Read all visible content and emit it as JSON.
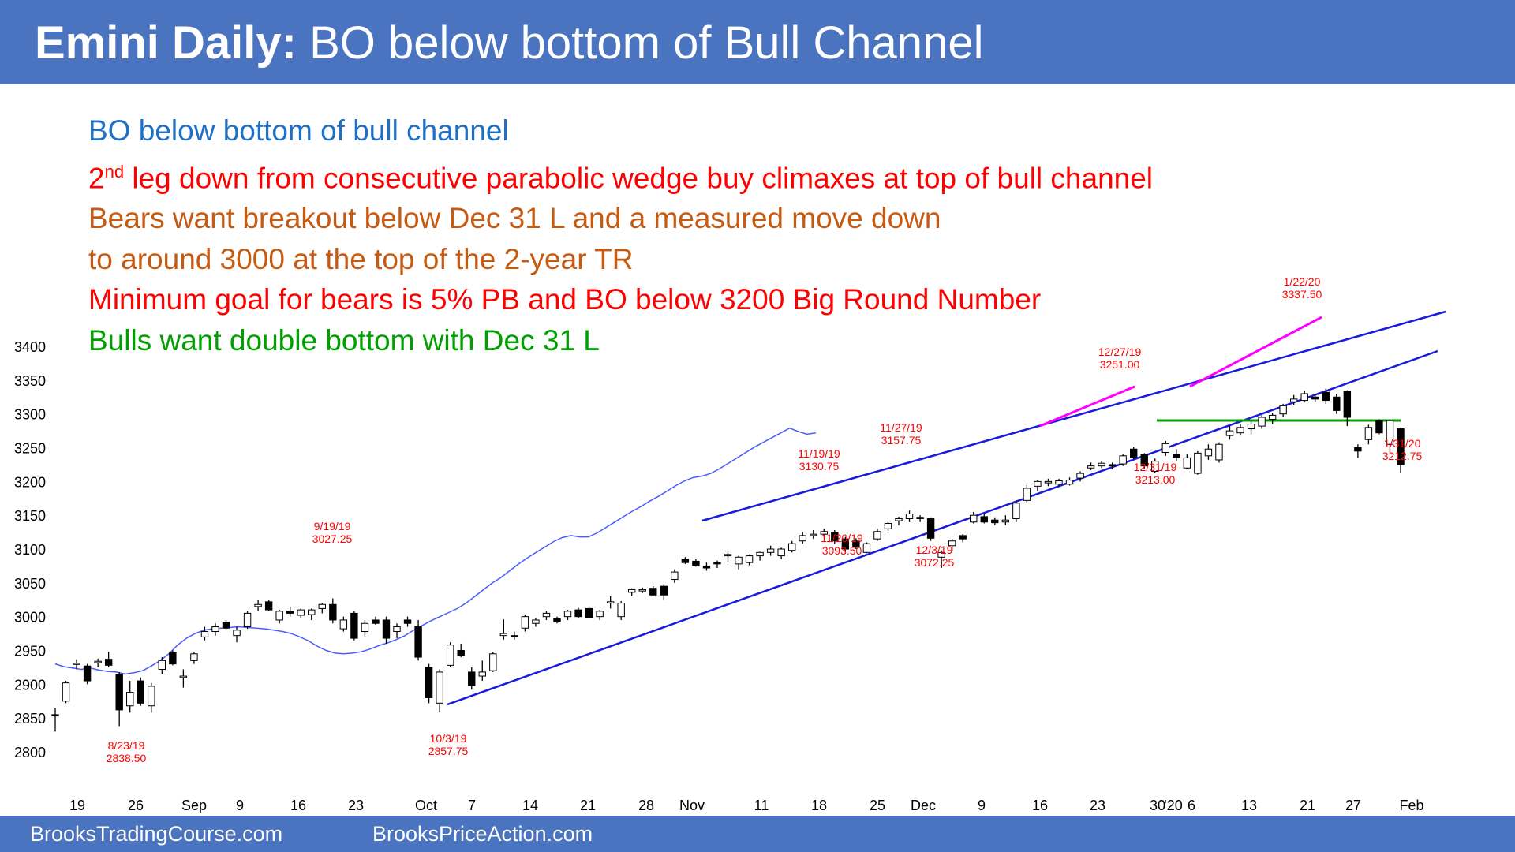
{
  "header": {
    "title_bold": "Emini Daily:",
    "title_rest": " BO below bottom of Bull Channel",
    "bg_color": "#4a73c0"
  },
  "notes": [
    {
      "text": "BO below bottom of bull channel",
      "color": "#1f6fc5"
    },
    {
      "prefix": "2",
      "sup": "nd",
      "text": " leg down from consecutive parabolic wedge buy climaxes at top of bull channel",
      "color": "#ff0000"
    },
    {
      "text": "Bears want breakout below Dec 31 L and a measured move down",
      "color": "#c65a11"
    },
    {
      "text": "to around 3000 at the top of the 2-year TR",
      "color": "#c65a11"
    },
    {
      "text": "Minimum goal for bears is 5% PB and BO below 3200 Big Round Number",
      "color": "#ff0000"
    },
    {
      "text": "Bulls want double bottom with Dec 31 L",
      "color": "#00a000"
    }
  ],
  "footer": {
    "left": "BrooksTradingCourse.com",
    "right": "BrooksPriceAction.com"
  },
  "chart_data": {
    "type": "candlestick",
    "y_ticks": [
      2800,
      2850,
      2900,
      2950,
      3000,
      3050,
      3100,
      3150,
      3200,
      3250,
      3300,
      3350,
      3400
    ],
    "ylim": [
      2800,
      3400
    ],
    "x_ticks": [
      "19",
      "26",
      "Sep",
      "9",
      "16",
      "23",
      "Oct",
      "7",
      "14",
      "21",
      "28",
      "Nov",
      "11",
      "18",
      "25",
      "Dec",
      "9",
      "16",
      "23",
      "30",
      "'20",
      "6",
      "13",
      "21",
      "27",
      "Feb"
    ],
    "candles": [
      {
        "o": 2855,
        "h": 2865,
        "l": 2830,
        "c": 2853
      },
      {
        "o": 2875,
        "h": 2905,
        "l": 2872,
        "c": 2902
      },
      {
        "o": 2930,
        "h": 2937,
        "l": 2922,
        "c": 2931
      },
      {
        "o": 2927,
        "h": 2930,
        "l": 2900,
        "c": 2905
      },
      {
        "o": 2932,
        "h": 2938,
        "l": 2925,
        "c": 2934
      },
      {
        "o": 2937,
        "h": 2948,
        "l": 2925,
        "c": 2928
      },
      {
        "o": 2915,
        "h": 2918,
        "l": 2838,
        "c": 2862
      },
      {
        "o": 2868,
        "h": 2905,
        "l": 2858,
        "c": 2888
      },
      {
        "o": 2905,
        "h": 2910,
        "l": 2868,
        "c": 2872
      },
      {
        "o": 2868,
        "h": 2902,
        "l": 2858,
        "c": 2897
      },
      {
        "o": 2922,
        "h": 2940,
        "l": 2915,
        "c": 2935
      },
      {
        "o": 2947,
        "h": 2950,
        "l": 2928,
        "c": 2930
      },
      {
        "o": 2910,
        "h": 2922,
        "l": 2895,
        "c": 2912
      },
      {
        "o": 2935,
        "h": 2948,
        "l": 2930,
        "c": 2945
      },
      {
        "o": 2970,
        "h": 2985,
        "l": 2965,
        "c": 2978
      },
      {
        "o": 2978,
        "h": 2990,
        "l": 2972,
        "c": 2985
      },
      {
        "o": 2992,
        "h": 2995,
        "l": 2980,
        "c": 2983
      },
      {
        "o": 2972,
        "h": 2985,
        "l": 2962,
        "c": 2980
      },
      {
        "o": 2985,
        "h": 3008,
        "l": 2982,
        "c": 3005
      },
      {
        "o": 3015,
        "h": 3025,
        "l": 3008,
        "c": 3018
      },
      {
        "o": 3022,
        "h": 3025,
        "l": 3008,
        "c": 3010
      },
      {
        "o": 2995,
        "h": 3010,
        "l": 2990,
        "c": 3008
      },
      {
        "o": 3008,
        "h": 3015,
        "l": 3000,
        "c": 3005
      },
      {
        "o": 3002,
        "h": 3012,
        "l": 2998,
        "c": 3010
      },
      {
        "o": 3003,
        "h": 3012,
        "l": 2995,
        "c": 3010
      },
      {
        "o": 3012,
        "h": 3020,
        "l": 3005,
        "c": 3018
      },
      {
        "o": 3018,
        "h": 3027,
        "l": 2990,
        "c": 2995
      },
      {
        "o": 2982,
        "h": 3000,
        "l": 2978,
        "c": 2995
      },
      {
        "o": 3005,
        "h": 3008,
        "l": 2965,
        "c": 2968
      },
      {
        "o": 2978,
        "h": 2995,
        "l": 2970,
        "c": 2990
      },
      {
        "o": 2995,
        "h": 3000,
        "l": 2988,
        "c": 2990
      },
      {
        "o": 2995,
        "h": 3000,
        "l": 2960,
        "c": 2968
      },
      {
        "o": 2978,
        "h": 2990,
        "l": 2968,
        "c": 2985
      },
      {
        "o": 2995,
        "h": 3000,
        "l": 2985,
        "c": 2990
      },
      {
        "o": 2985,
        "h": 2995,
        "l": 2935,
        "c": 2940
      },
      {
        "o": 2925,
        "h": 2930,
        "l": 2872,
        "c": 2880
      },
      {
        "o": 2872,
        "h": 2922,
        "l": 2858,
        "c": 2918
      },
      {
        "o": 2928,
        "h": 2962,
        "l": 2925,
        "c": 2958
      },
      {
        "o": 2950,
        "h": 2960,
        "l": 2940,
        "c": 2943
      },
      {
        "o": 2918,
        "h": 2925,
        "l": 2892,
        "c": 2898
      },
      {
        "o": 2912,
        "h": 2935,
        "l": 2905,
        "c": 2918
      },
      {
        "o": 2920,
        "h": 2948,
        "l": 2918,
        "c": 2945
      },
      {
        "o": 2972,
        "h": 2996,
        "l": 2966,
        "c": 2975
      },
      {
        "o": 2972,
        "h": 2978,
        "l": 2966,
        "c": 2970
      },
      {
        "o": 2983,
        "h": 3003,
        "l": 2978,
        "c": 3000
      },
      {
        "o": 2990,
        "h": 2998,
        "l": 2985,
        "c": 2995
      },
      {
        "o": 3000,
        "h": 3008,
        "l": 2995,
        "c": 3005
      },
      {
        "o": 2997,
        "h": 3000,
        "l": 2990,
        "c": 2992
      },
      {
        "o": 3000,
        "h": 3010,
        "l": 2995,
        "c": 3008
      },
      {
        "o": 3010,
        "h": 3013,
        "l": 2998,
        "c": 3000
      },
      {
        "o": 3012,
        "h": 3015,
        "l": 2998,
        "c": 2998
      },
      {
        "o": 3000,
        "h": 3010,
        "l": 2995,
        "c": 3008
      },
      {
        "o": 3020,
        "h": 3030,
        "l": 3012,
        "c": 3022
      },
      {
        "o": 3000,
        "h": 3023,
        "l": 2995,
        "c": 3020
      },
      {
        "o": 3036,
        "h": 3042,
        "l": 3030,
        "c": 3040
      },
      {
        "o": 3038,
        "h": 3043,
        "l": 3035,
        "c": 3040
      },
      {
        "o": 3042,
        "h": 3045,
        "l": 3030,
        "c": 3032
      },
      {
        "o": 3045,
        "h": 3048,
        "l": 3025,
        "c": 3032
      },
      {
        "o": 3055,
        "h": 3070,
        "l": 3050,
        "c": 3066
      },
      {
        "o": 3085,
        "h": 3088,
        "l": 3078,
        "c": 3080
      },
      {
        "o": 3082,
        "h": 3085,
        "l": 3074,
        "c": 3076
      },
      {
        "o": 3075,
        "h": 3080,
        "l": 3068,
        "c": 3072
      },
      {
        "o": 3080,
        "h": 3083,
        "l": 3072,
        "c": 3078
      },
      {
        "o": 3090,
        "h": 3098,
        "l": 3080,
        "c": 3092
      },
      {
        "o": 3078,
        "h": 3090,
        "l": 3070,
        "c": 3088
      },
      {
        "o": 3080,
        "h": 3092,
        "l": 3076,
        "c": 3090
      },
      {
        "o": 3090,
        "h": 3096,
        "l": 3083,
        "c": 3095
      },
      {
        "o": 3095,
        "h": 3105,
        "l": 3090,
        "c": 3100
      },
      {
        "o": 3090,
        "h": 3102,
        "l": 3085,
        "c": 3100
      },
      {
        "o": 3098,
        "h": 3112,
        "l": 3095,
        "c": 3108
      },
      {
        "o": 3112,
        "h": 3125,
        "l": 3108,
        "c": 3120
      },
      {
        "o": 3120,
        "h": 3128,
        "l": 3115,
        "c": 3122
      },
      {
        "o": 3122,
        "h": 3130,
        "l": 3118,
        "c": 3126
      },
      {
        "o": 3125,
        "h": 3128,
        "l": 3108,
        "c": 3112
      },
      {
        "o": 3115,
        "h": 3118,
        "l": 3095,
        "c": 3100
      },
      {
        "o": 3112,
        "h": 3116,
        "l": 3100,
        "c": 3104
      },
      {
        "o": 3095,
        "h": 3110,
        "l": 3094,
        "c": 3108
      },
      {
        "o": 3115,
        "h": 3130,
        "l": 3112,
        "c": 3126
      },
      {
        "o": 3130,
        "h": 3142,
        "l": 3127,
        "c": 3138
      },
      {
        "o": 3142,
        "h": 3148,
        "l": 3135,
        "c": 3145
      },
      {
        "o": 3145,
        "h": 3157,
        "l": 3140,
        "c": 3152
      },
      {
        "o": 3147,
        "h": 3150,
        "l": 3140,
        "c": 3145
      },
      {
        "o": 3145,
        "h": 3147,
        "l": 3112,
        "c": 3116
      },
      {
        "o": 3088,
        "h": 3098,
        "l": 3072,
        "c": 3095
      },
      {
        "o": 3105,
        "h": 3115,
        "l": 3098,
        "c": 3112
      },
      {
        "o": 3120,
        "h": 3122,
        "l": 3110,
        "c": 3115
      },
      {
        "o": 3140,
        "h": 3155,
        "l": 3138,
        "c": 3150
      },
      {
        "o": 3148,
        "h": 3152,
        "l": 3138,
        "c": 3140
      },
      {
        "o": 3143,
        "h": 3147,
        "l": 3135,
        "c": 3139
      },
      {
        "o": 3140,
        "h": 3150,
        "l": 3135,
        "c": 3143
      },
      {
        "o": 3145,
        "h": 3172,
        "l": 3140,
        "c": 3168
      },
      {
        "o": 3172,
        "h": 3195,
        "l": 3168,
        "c": 3190
      },
      {
        "o": 3193,
        "h": 3202,
        "l": 3186,
        "c": 3200
      },
      {
        "o": 3198,
        "h": 3204,
        "l": 3193,
        "c": 3200
      },
      {
        "o": 3196,
        "h": 3204,
        "l": 3193,
        "c": 3201
      },
      {
        "o": 3196,
        "h": 3206,
        "l": 3194,
        "c": 3202
      },
      {
        "o": 3205,
        "h": 3215,
        "l": 3200,
        "c": 3212
      },
      {
        "o": 3220,
        "h": 3228,
        "l": 3217,
        "c": 3223
      },
      {
        "o": 3223,
        "h": 3230,
        "l": 3220,
        "c": 3227
      },
      {
        "o": 3225,
        "h": 3228,
        "l": 3218,
        "c": 3223
      },
      {
        "o": 3226,
        "h": 3240,
        "l": 3223,
        "c": 3238
      },
      {
        "o": 3248,
        "h": 3251,
        "l": 3233,
        "c": 3236
      },
      {
        "o": 3240,
        "h": 3242,
        "l": 3218,
        "c": 3223
      },
      {
        "o": 3215,
        "h": 3234,
        "l": 3213,
        "c": 3230
      },
      {
        "o": 3243,
        "h": 3260,
        "l": 3238,
        "c": 3256
      },
      {
        "o": 3240,
        "h": 3248,
        "l": 3230,
        "c": 3236
      },
      {
        "o": 3220,
        "h": 3240,
        "l": 3218,
        "c": 3235
      },
      {
        "o": 3212,
        "h": 3245,
        "l": 3210,
        "c": 3242
      },
      {
        "o": 3238,
        "h": 3255,
        "l": 3232,
        "c": 3248
      },
      {
        "o": 3232,
        "h": 3258,
        "l": 3228,
        "c": 3255
      },
      {
        "o": 3268,
        "h": 3282,
        "l": 3262,
        "c": 3275
      },
      {
        "o": 3272,
        "h": 3285,
        "l": 3268,
        "c": 3280
      },
      {
        "o": 3278,
        "h": 3290,
        "l": 3270,
        "c": 3285
      },
      {
        "o": 3282,
        "h": 3298,
        "l": 3278,
        "c": 3295
      },
      {
        "o": 3292,
        "h": 3302,
        "l": 3285,
        "c": 3298
      },
      {
        "o": 3300,
        "h": 3315,
        "l": 3296,
        "c": 3312
      },
      {
        "o": 3318,
        "h": 3328,
        "l": 3313,
        "c": 3322
      },
      {
        "o": 3320,
        "h": 3334,
        "l": 3318,
        "c": 3330
      },
      {
        "o": 3325,
        "h": 3330,
        "l": 3318,
        "c": 3322
      },
      {
        "o": 3332,
        "h": 3337.5,
        "l": 3315,
        "c": 3320
      },
      {
        "o": 3325,
        "h": 3330,
        "l": 3300,
        "c": 3305
      },
      {
        "o": 3333,
        "h": 3335,
        "l": 3282,
        "c": 3295
      },
      {
        "o": 3250,
        "h": 3255,
        "l": 3235,
        "c": 3245
      },
      {
        "o": 3262,
        "h": 3284,
        "l": 3255,
        "c": 3280
      },
      {
        "o": 3290,
        "h": 3292,
        "l": 3270,
        "c": 3272
      },
      {
        "o": 3255,
        "h": 3292,
        "l": 3242,
        "c": 3290
      },
      {
        "o": 3278,
        "h": 3280,
        "l": 3212.75,
        "c": 3225
      }
    ],
    "ema20": [
      2930,
      2926,
      2924,
      2922,
      2924,
      2921,
      2919,
      2918,
      2915,
      2917,
      2920,
      2927,
      2935,
      2945,
      2958,
      2968,
      2975,
      2980,
      2982,
      2983,
      2984,
      2985,
      2984,
      2983,
      2982,
      2980,
      2978,
      2975,
      2970,
      2964,
      2956,
      2950,
      2946,
      2945,
      2946,
      2948,
      2952,
      2957,
      2961,
      2966,
      2972,
      2980,
      2987,
      2994,
      3000,
      3006,
      3012,
      3020,
      3030,
      3040,
      3050,
      3058,
      3068,
      3078,
      3087,
      3095,
      3103,
      3111,
      3117,
      3120,
      3118,
      3118,
      3124,
      3132,
      3140,
      3148,
      3156,
      3163,
      3171,
      3178,
      3186,
      3194,
      3201,
      3206,
      3208,
      3212,
      3219,
      3227,
      3235,
      3243,
      3251,
      3258,
      3265,
      3272,
      3279,
      3274,
      3270,
      3272
    ],
    "ema20_start_index": 0,
    "labels": [
      {
        "date": "8/23/19",
        "value": "2838.50"
      },
      {
        "date": "9/19/19",
        "value": "3027.25"
      },
      {
        "date": "10/3/19",
        "value": "2857.75"
      },
      {
        "date": "11/19/19",
        "value": "3130.75"
      },
      {
        "date": "11/20/19",
        "value": "3093.50"
      },
      {
        "date": "11/27/19",
        "value": "3157.75"
      },
      {
        "date": "12/3/19",
        "value": "3072.25"
      },
      {
        "date": "12/27/19",
        "value": "3251.00"
      },
      {
        "date": "12/31/19",
        "value": "3213.00"
      },
      {
        "date": "1/22/20",
        "value": "3337.50"
      },
      {
        "date": "1/31/20",
        "value": "3212.75"
      }
    ],
    "colors": {
      "up": "#ffffff",
      "down": "#000000",
      "ema": "#4a5cff",
      "channel": "#1a1adc",
      "wedge": "#ff00ff",
      "support": "#00a000",
      "label": "#ff0000",
      "axis_text": "#000000"
    }
  }
}
